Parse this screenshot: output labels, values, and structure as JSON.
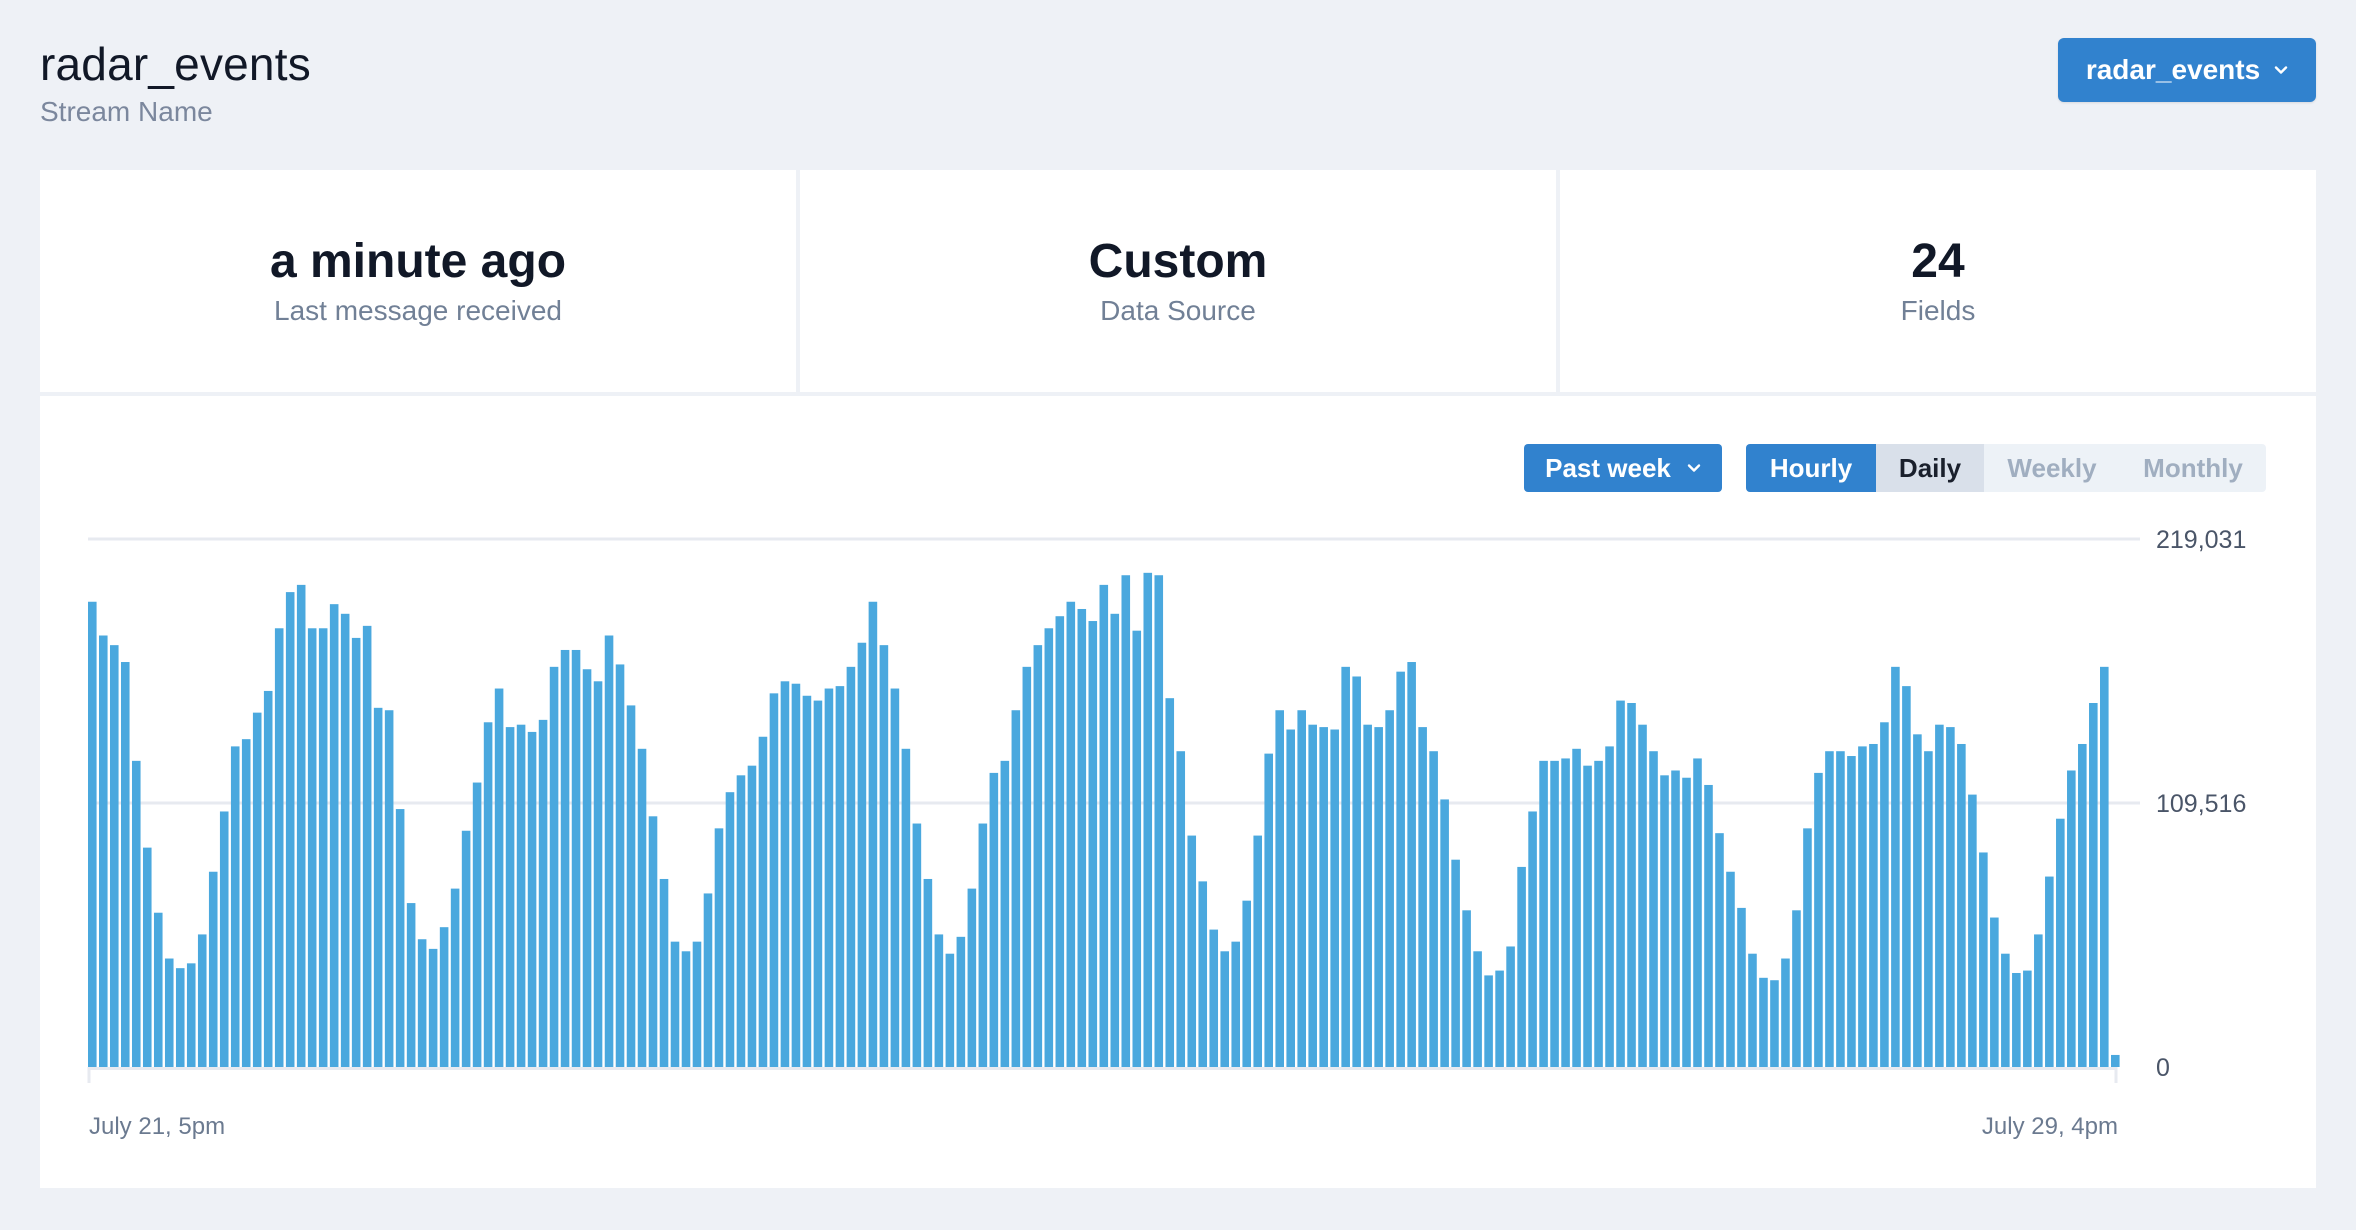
{
  "header": {
    "title": "radar_events",
    "subtitle": "Stream Name",
    "stream_select_label": "radar_events",
    "chevron_icon": "chevron-down-icon"
  },
  "stats": [
    {
      "value": "a minute ago",
      "label": "Last message received"
    },
    {
      "value": "Custom",
      "label": "Data Source"
    },
    {
      "value": "24",
      "label": "Fields"
    }
  ],
  "controls": {
    "range_label": "Past week",
    "granularity": [
      "Hourly",
      "Daily",
      "Weekly",
      "Monthly"
    ],
    "active_granularity": "Hourly",
    "selected_granularity": "Daily"
  },
  "colors": {
    "accent": "#3182ce",
    "bar": "#4aa8de",
    "grid": "#e7eaf0",
    "background": "#eef1f6"
  },
  "chart_data": {
    "type": "bar",
    "x_start_label": "July 21, 5pm",
    "x_end_label": "July 29, 4pm",
    "y_tick_labels": [
      "219,031",
      "109,516",
      "0"
    ],
    "y_ticks": [
      219031,
      109516,
      0
    ],
    "ylim": [
      0,
      219031
    ],
    "grid": true,
    "values": [
      193000,
      179000,
      175000,
      168000,
      127000,
      91000,
      64000,
      45000,
      41000,
      43000,
      55000,
      81000,
      106000,
      133000,
      136000,
      147000,
      156000,
      182000,
      197000,
      200000,
      182000,
      182000,
      192000,
      188000,
      178000,
      183000,
      149000,
      148000,
      107000,
      68000,
      53000,
      49000,
      58000,
      74000,
      98000,
      118000,
      143000,
      157000,
      141000,
      142000,
      139000,
      144000,
      166000,
      173000,
      173000,
      165000,
      160000,
      179000,
      167000,
      150000,
      132000,
      104000,
      78000,
      52000,
      48000,
      52000,
      72000,
      99000,
      114000,
      121000,
      125000,
      137000,
      155000,
      160000,
      159000,
      154000,
      152000,
      157000,
      158000,
      166000,
      176000,
      193000,
      175000,
      157000,
      132000,
      101000,
      78000,
      55000,
      47000,
      54000,
      74000,
      101000,
      122000,
      127000,
      148000,
      166000,
      175000,
      182000,
      187000,
      193000,
      190000,
      185000,
      200000,
      188000,
      204000,
      181000,
      205000,
      204000,
      153000,
      131000,
      96000,
      77000,
      57000,
      48000,
      52000,
      69000,
      96000,
      130000,
      148000,
      140000,
      148000,
      142000,
      141000,
      140000,
      166000,
      162000,
      142000,
      141000,
      148000,
      164000,
      168000,
      141000,
      131000,
      111000,
      86000,
      65000,
      48000,
      38000,
      40000,
      50000,
      83000,
      106000,
      127000,
      127000,
      128000,
      132000,
      125000,
      127000,
      133000,
      152000,
      151000,
      142000,
      131000,
      121000,
      123000,
      120000,
      128000,
      117000,
      97000,
      81000,
      66000,
      47000,
      37000,
      36000,
      45000,
      65000,
      99000,
      122000,
      131000,
      131000,
      129000,
      133000,
      134000,
      143000,
      166000,
      158000,
      138000,
      131000,
      142000,
      141000,
      134000,
      113000,
      89000,
      62000,
      47000,
      39000,
      40000,
      55000,
      79000,
      103000,
      123000,
      134000,
      151000,
      166000,
      5000
    ]
  }
}
